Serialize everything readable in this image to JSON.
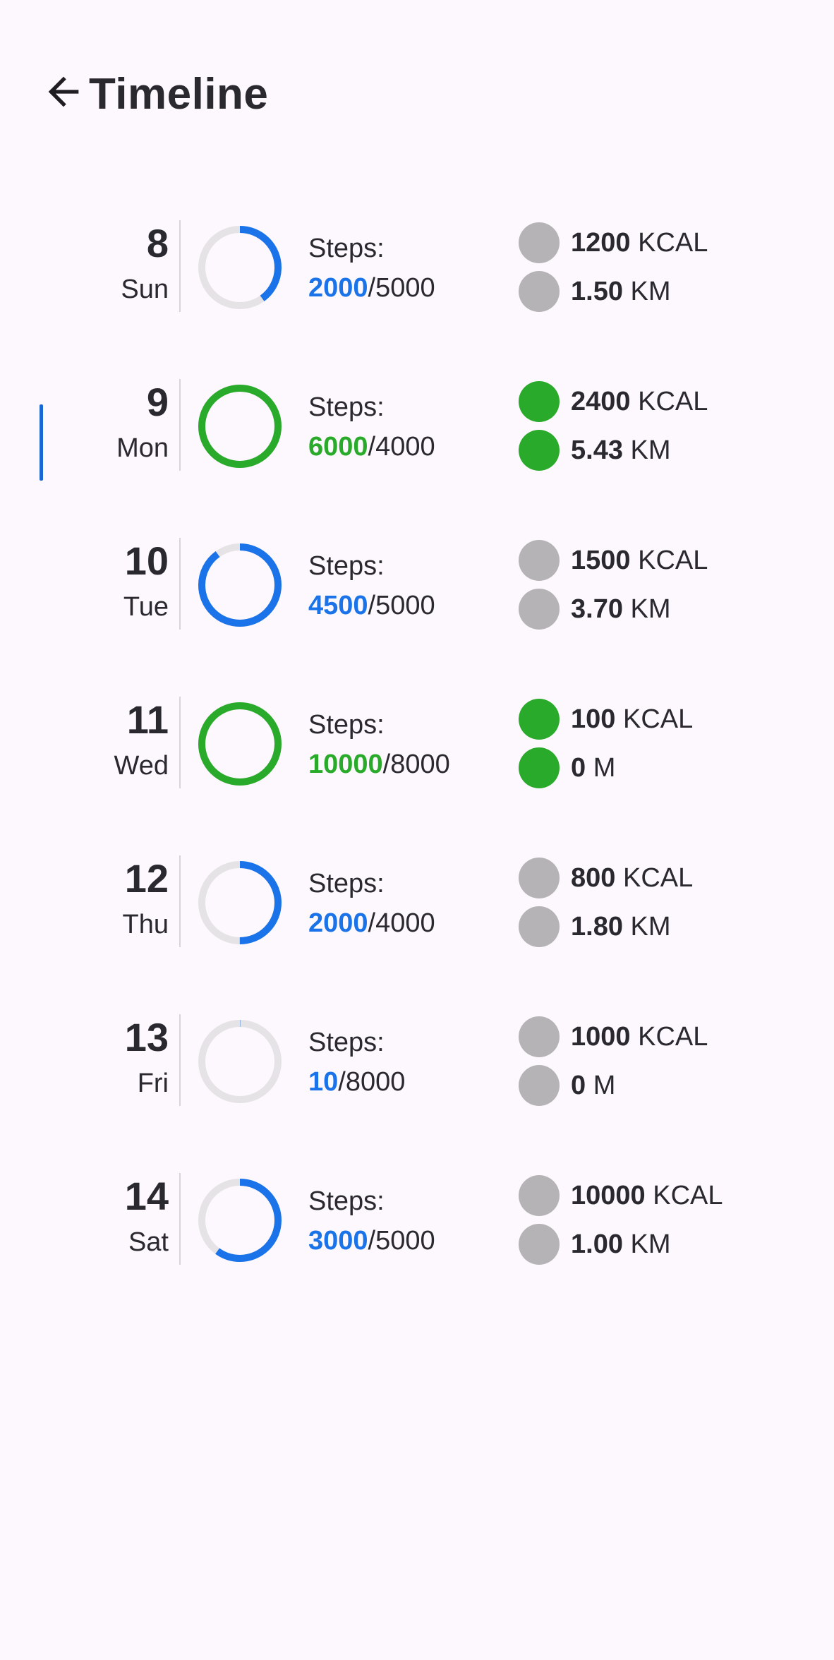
{
  "header": {
    "title": "Timeline",
    "back_icon": "arrow-left-icon"
  },
  "colors": {
    "blue": "#1a73e8",
    "green": "#2aaa2a",
    "ring_track": "#e6e3e6",
    "dot_grey": "#b5b3b5",
    "selected_indicator": "#1967d2"
  },
  "days": [
    {
      "day": "8",
      "weekday": "Sun",
      "steps_label": "Steps:",
      "steps_current": "2000",
      "steps_goal": "/5000",
      "progress": 0.4,
      "status": "partial",
      "kcal_value": "1200",
      "kcal_unit": "KCAL",
      "dist_value": "1.50",
      "dist_unit": "KM",
      "goal_met": false,
      "selected": false
    },
    {
      "day": "9",
      "weekday": "Mon",
      "steps_label": "Steps:",
      "steps_current": "6000",
      "steps_goal": "/4000",
      "progress": 1.0,
      "status": "complete",
      "kcal_value": "2400",
      "kcal_unit": "KCAL",
      "dist_value": "5.43",
      "dist_unit": "KM",
      "goal_met": true,
      "selected": true
    },
    {
      "day": "10",
      "weekday": "Tue",
      "steps_label": "Steps:",
      "steps_current": "4500",
      "steps_goal": "/5000",
      "progress": 0.9,
      "status": "partial",
      "kcal_value": "1500",
      "kcal_unit": "KCAL",
      "dist_value": "3.70",
      "dist_unit": "KM",
      "goal_met": false,
      "selected": false
    },
    {
      "day": "11",
      "weekday": "Wed",
      "steps_label": "Steps:",
      "steps_current": "10000",
      "steps_goal": "/8000",
      "progress": 1.0,
      "status": "complete",
      "kcal_value": "100",
      "kcal_unit": "KCAL",
      "dist_value": "0",
      "dist_unit": "M",
      "goal_met": true,
      "selected": false
    },
    {
      "day": "12",
      "weekday": "Thu",
      "steps_label": "Steps:",
      "steps_current": "2000",
      "steps_goal": "/4000",
      "progress": 0.5,
      "status": "partial",
      "kcal_value": "800",
      "kcal_unit": "KCAL",
      "dist_value": "1.80",
      "dist_unit": "KM",
      "goal_met": false,
      "selected": false
    },
    {
      "day": "13",
      "weekday": "Fri",
      "steps_label": "Steps:",
      "steps_current": "10",
      "steps_goal": "/8000",
      "progress": 0.00125,
      "status": "partial",
      "kcal_value": "1000",
      "kcal_unit": "KCAL",
      "dist_value": "0",
      "dist_unit": "M",
      "goal_met": false,
      "selected": false
    },
    {
      "day": "14",
      "weekday": "Sat",
      "steps_label": "Steps:",
      "steps_current": "3000",
      "steps_goal": "/5000",
      "progress": 0.6,
      "status": "partial",
      "kcal_value": "10000",
      "kcal_unit": "KCAL",
      "dist_value": "1.00",
      "dist_unit": "KM",
      "goal_met": false,
      "selected": false
    }
  ]
}
